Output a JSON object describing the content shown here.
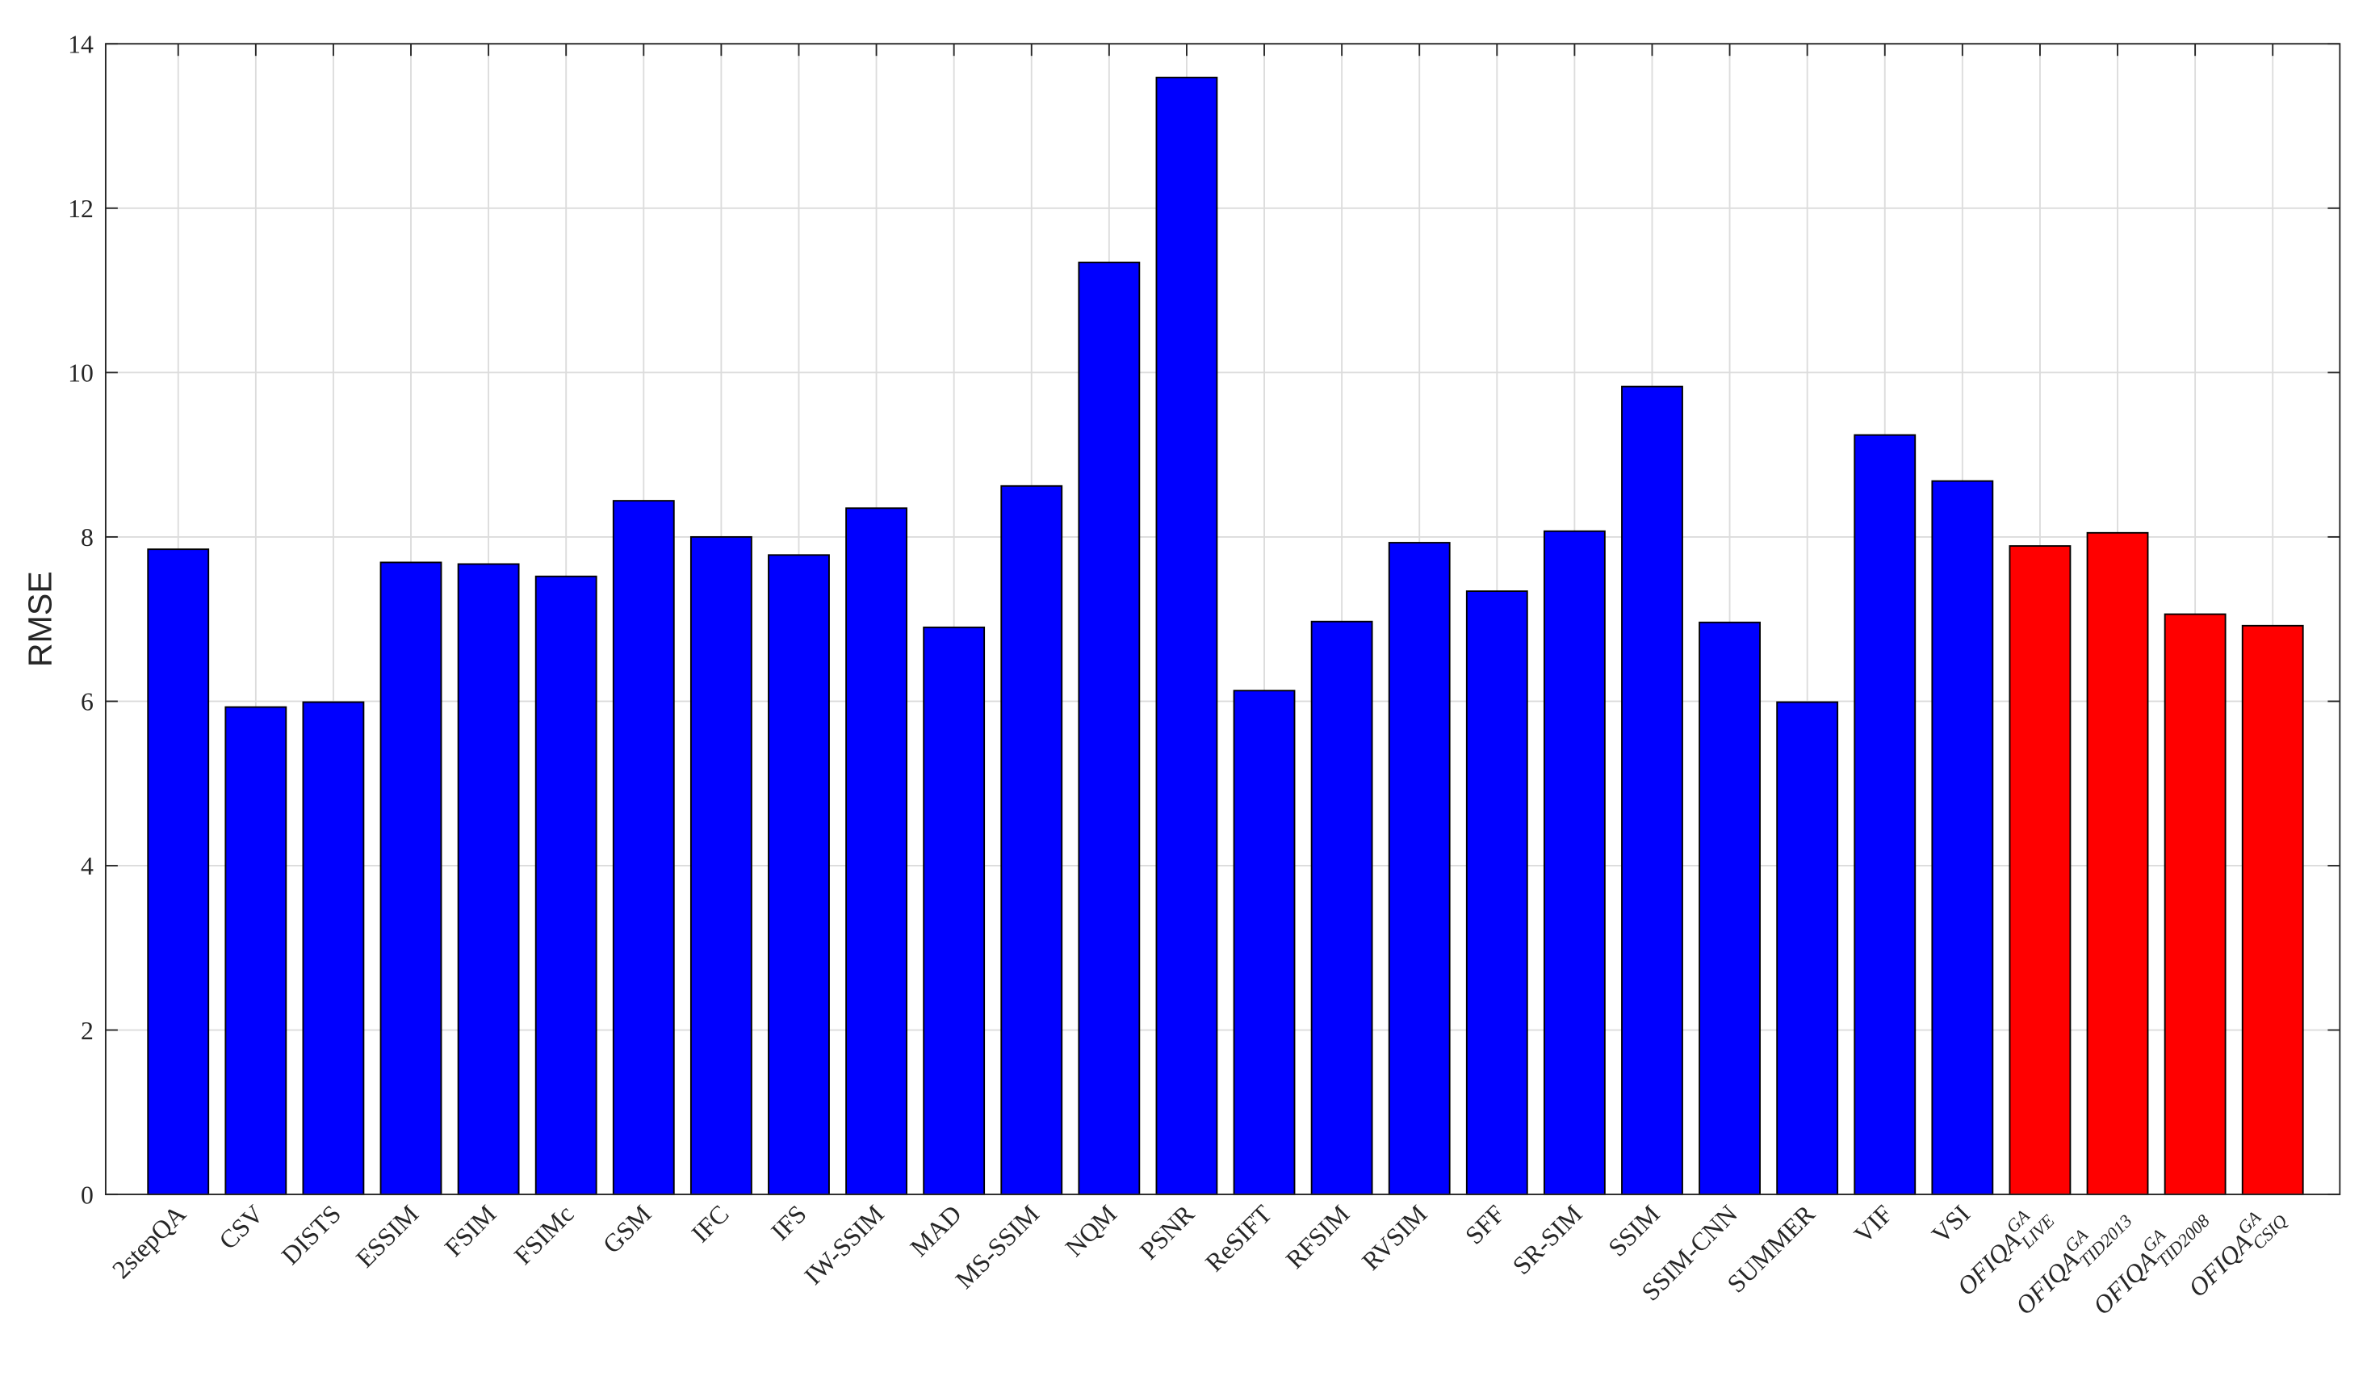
{
  "chart_data": {
    "type": "bar",
    "y_label": "RMSE",
    "categories": [
      "2stepQA",
      "CSV",
      "DISTS",
      "ESSIM",
      "FSIM",
      "FSIMc",
      "GSM",
      "IFC",
      "IFS",
      "IW-SSIM",
      "MAD",
      "MS-SSIM",
      "NQM",
      "PSNR",
      "ReSIFT",
      "RFSIM",
      "RVSIM",
      "SFF",
      "SR-SIM",
      "SSIM",
      "SSIM-CNN",
      "SUMMER",
      "VIF",
      "VSI",
      {
        "base": "OFIQA",
        "sup": "GA",
        "sub": "LIVE"
      },
      {
        "base": "OFIQA",
        "sup": "GA",
        "sub": "TID2013"
      },
      {
        "base": "OFIQA",
        "sup": "GA",
        "sub": "TID2008"
      },
      {
        "base": "OFIQA",
        "sup": "GA",
        "sub": "CSIQ"
      }
    ],
    "values": [
      7.85,
      5.93,
      5.99,
      7.69,
      7.67,
      7.52,
      8.44,
      8.0,
      7.78,
      8.35,
      6.9,
      8.62,
      11.34,
      13.59,
      6.13,
      6.97,
      7.93,
      7.34,
      8.07,
      9.83,
      6.96,
      5.99,
      9.24,
      8.68,
      7.89,
      8.05,
      7.06,
      6.92
    ],
    "colors": [
      "#0000ff",
      "#0000ff",
      "#0000ff",
      "#0000ff",
      "#0000ff",
      "#0000ff",
      "#0000ff",
      "#0000ff",
      "#0000ff",
      "#0000ff",
      "#0000ff",
      "#0000ff",
      "#0000ff",
      "#0000ff",
      "#0000ff",
      "#0000ff",
      "#0000ff",
      "#0000ff",
      "#0000ff",
      "#0000ff",
      "#0000ff",
      "#0000ff",
      "#0000ff",
      "#0000ff",
      "#ff0000",
      "#ff0000",
      "#ff0000",
      "#ff0000"
    ],
    "ylim": [
      0,
      14
    ],
    "yticks": [
      0,
      2,
      4,
      6,
      8,
      10,
      12,
      14
    ],
    "grid": true
  }
}
